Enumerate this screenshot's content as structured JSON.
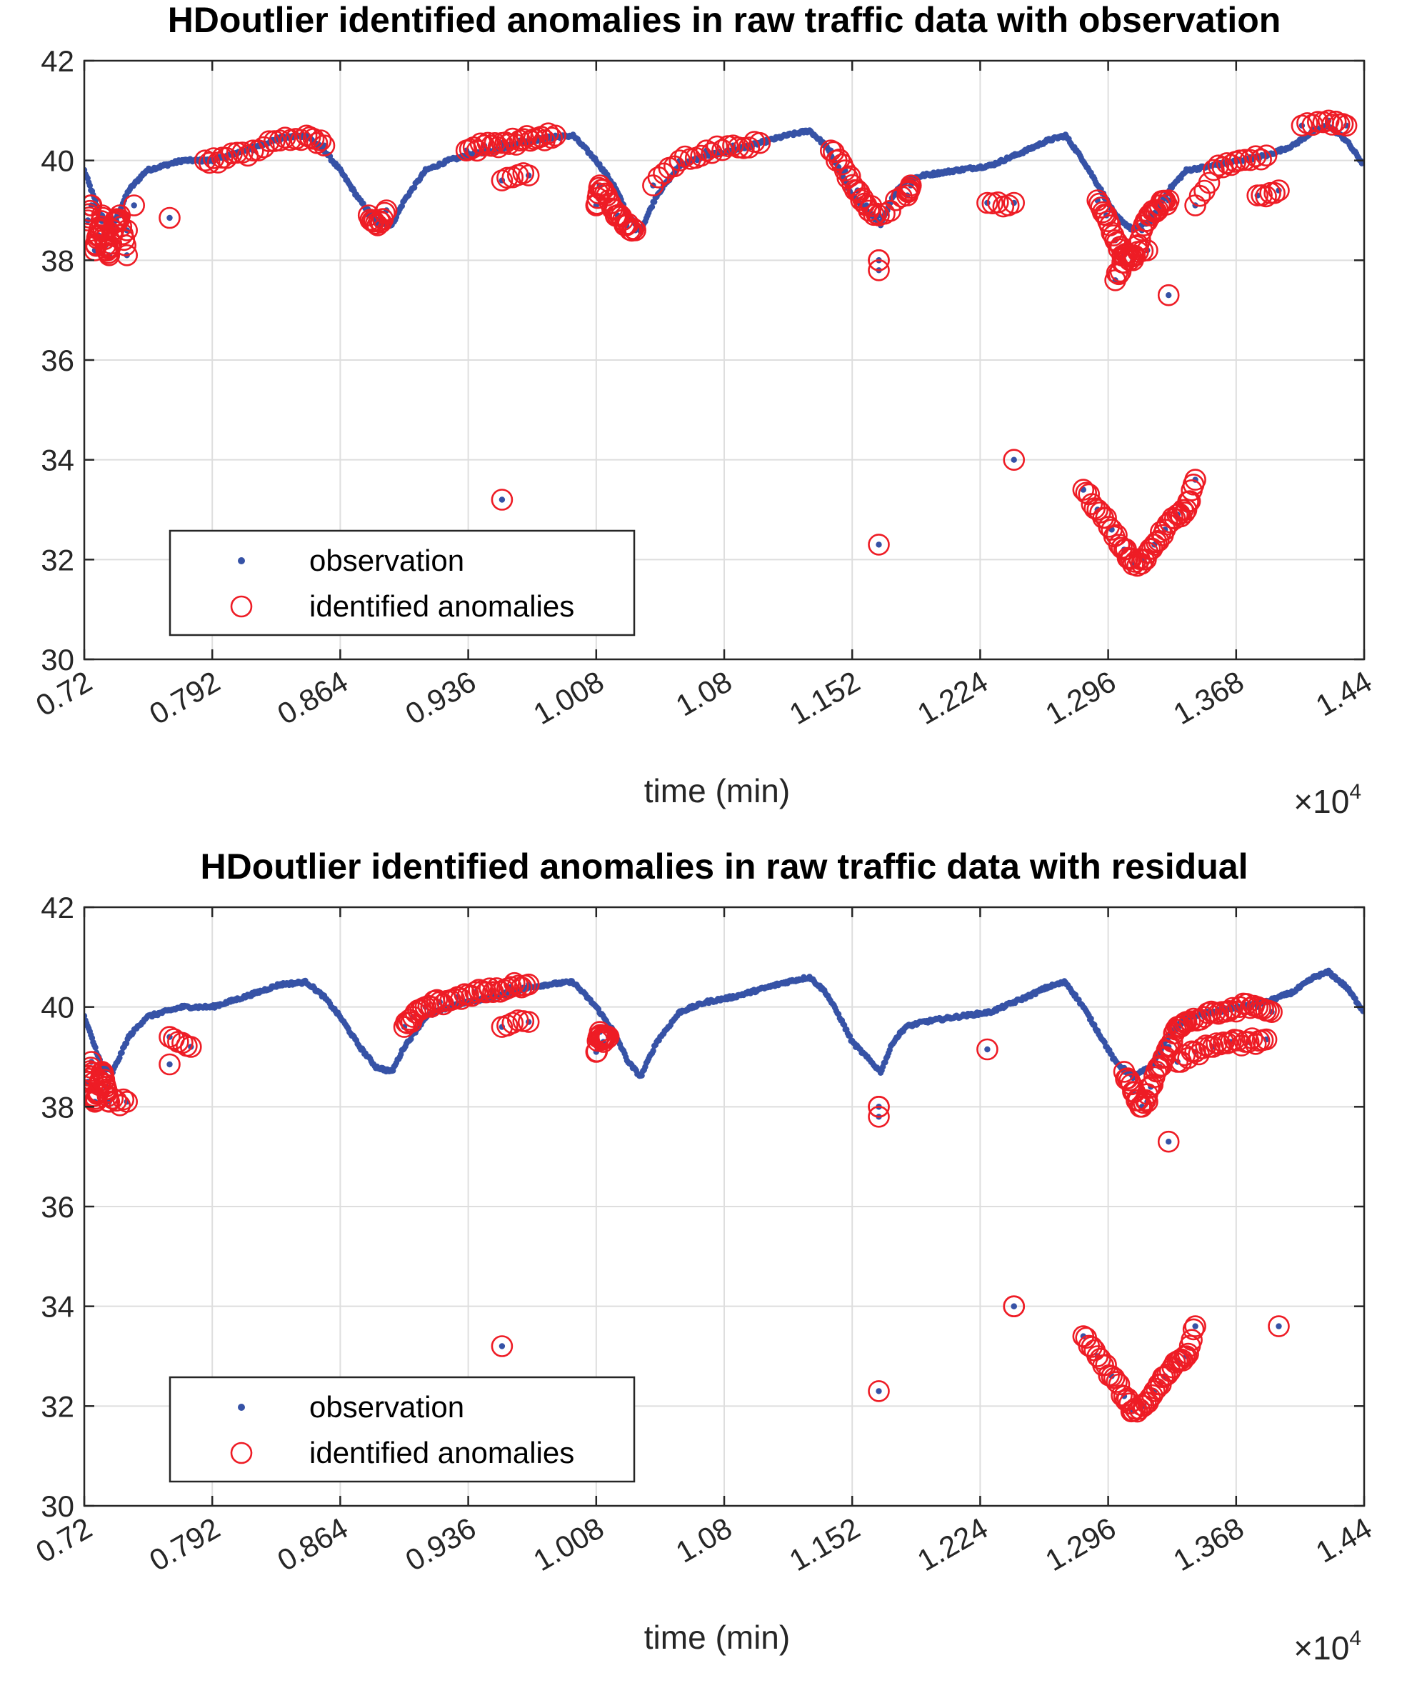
{
  "chart_data": [
    {
      "type": "scatter",
      "title": "HDoutlier identified anomalies in raw traffic data with observation",
      "xlabel": "time (min)",
      "ylabel": "",
      "x_exponent_label": "×10",
      "x_exponent_power": "4",
      "xlim": [
        0.72,
        1.44
      ],
      "ylim": [
        30,
        42
      ],
      "xticks": [
        0.72,
        0.792,
        0.864,
        0.936,
        1.008,
        1.08,
        1.152,
        1.224,
        1.296,
        1.368,
        1.44
      ],
      "xtick_labels": [
        "0.72",
        "0.792",
        "0.864",
        "0.936",
        "1.008",
        "1.08",
        "1.152",
        "1.224",
        "1.296",
        "1.368",
        "1.44"
      ],
      "yticks": [
        30,
        32,
        34,
        36,
        38,
        40,
        42
      ],
      "ytick_labels": [
        "30",
        "32",
        "34",
        "36",
        "38",
        "40",
        "42"
      ],
      "grid": true,
      "legend": {
        "position": "bottom-left",
        "entries": [
          {
            "label": "observation",
            "marker": "dot",
            "color": "#3652a6"
          },
          {
            "label": "identified anomalies",
            "marker": "circle",
            "color": "#ee1c25"
          }
        ]
      },
      "series": [
        {
          "name": "observation",
          "color": "#3652a6",
          "x": [
            0.72,
            0.725,
            0.73,
            0.736,
            0.745,
            0.755,
            0.765,
            0.775,
            0.792,
            0.81,
            0.83,
            0.845,
            0.855,
            0.864,
            0.875,
            0.884,
            0.893,
            0.9,
            0.912,
            0.925,
            0.936,
            0.95,
            0.965,
            0.98,
            0.995,
            1.008,
            1.018,
            1.026,
            1.033,
            1.042,
            1.055,
            1.07,
            1.085,
            1.1,
            1.115,
            1.128,
            1.137,
            1.145,
            1.152,
            1.16,
            1.168,
            1.175,
            1.182,
            1.192,
            1.21,
            1.23,
            1.25,
            1.262,
            1.272,
            1.282,
            1.292,
            1.3,
            1.31,
            1.32,
            1.33,
            1.34,
            1.355,
            1.37,
            1.385,
            1.4,
            1.412,
            1.42,
            1.43,
            1.44
          ],
          "y": [
            39.8,
            39.3,
            38.8,
            38.7,
            39.4,
            39.8,
            39.9,
            40.0,
            40.0,
            40.2,
            40.45,
            40.5,
            40.2,
            39.8,
            39.2,
            38.8,
            38.7,
            39.2,
            39.8,
            40.0,
            40.1,
            40.2,
            40.35,
            40.45,
            40.5,
            40.0,
            39.5,
            38.9,
            38.6,
            39.3,
            39.9,
            40.1,
            40.2,
            40.35,
            40.5,
            40.6,
            40.3,
            39.8,
            39.3,
            39.0,
            38.7,
            39.3,
            39.6,
            39.7,
            39.8,
            39.9,
            40.2,
            40.4,
            40.5,
            40.0,
            39.4,
            38.9,
            38.6,
            38.8,
            39.4,
            39.8,
            39.9,
            40.0,
            40.1,
            40.3,
            40.6,
            40.7,
            40.4,
            39.9
          ]
        },
        {
          "name": "identified anomalies",
          "color": "#ee1c25",
          "x": [
            0.722,
            0.724,
            0.726,
            0.728,
            0.73,
            0.732,
            0.734,
            0.736,
            0.738,
            0.74,
            0.744,
            0.748,
            0.744,
            0.768,
            0.788,
            0.8,
            0.815,
            0.83,
            0.845,
            0.855,
            0.88,
            0.885,
            0.89,
            0.935,
            0.945,
            0.955,
            0.965,
            0.975,
            0.985,
            0.955,
            0.97,
            1.008,
            1.01,
            1.015,
            1.02,
            1.025,
            1.03,
            1.04,
            1.055,
            1.07,
            1.085,
            1.1,
            1.14,
            1.148,
            1.155,
            1.16,
            1.167,
            1.183,
            1.185,
            1.167,
            1.167,
            1.167,
            1.228,
            1.243,
            1.29,
            1.295,
            1.3,
            1.305,
            1.31,
            1.315,
            1.32,
            1.325,
            1.33,
            1.3,
            1.305,
            1.318,
            1.33,
            1.345,
            1.358,
            1.37,
            1.385,
            1.405,
            1.42,
            1.43,
            1.38,
            1.392,
            0.955,
            1.167,
            1.243,
            1.282,
            1.29,
            1.298,
            1.305,
            1.31,
            1.316,
            1.322,
            1.328,
            1.335,
            1.34,
            1.345
          ],
          "y": [
            38.8,
            39.1,
            38.2,
            38.5,
            38.9,
            38.3,
            38.1,
            38.6,
            38.8,
            38.9,
            38.1,
            39.1,
            38.6,
            38.85,
            40.0,
            40.05,
            40.2,
            40.4,
            40.5,
            40.3,
            38.9,
            38.7,
            39.0,
            40.2,
            40.3,
            40.35,
            40.4,
            40.45,
            40.5,
            39.6,
            39.7,
            39.1,
            39.5,
            39.2,
            38.9,
            38.7,
            38.6,
            39.5,
            40.0,
            40.2,
            40.3,
            40.35,
            40.2,
            39.8,
            39.4,
            39.1,
            38.9,
            39.3,
            39.5,
            38.0,
            37.8,
            38.0,
            39.15,
            39.15,
            39.2,
            38.9,
            38.4,
            38.1,
            38.0,
            38.6,
            38.9,
            39.1,
            39.2,
            37.6,
            37.95,
            38.2,
            37.3,
            39.1,
            39.9,
            40.0,
            40.1,
            40.7,
            40.8,
            40.7,
            39.3,
            39.4,
            33.2,
            32.3,
            34.0,
            33.4,
            33.0,
            32.6,
            32.2,
            31.9,
            32.0,
            32.3,
            32.6,
            32.9,
            33.0,
            33.6
          ]
        }
      ]
    },
    {
      "type": "scatter",
      "title": "HDoutlier identified anomalies in raw traffic data with residual",
      "xlabel": "time (min)",
      "ylabel": "",
      "x_exponent_label": "×10",
      "x_exponent_power": "4",
      "xlim": [
        0.72,
        1.44
      ],
      "ylim": [
        30,
        42
      ],
      "xticks": [
        0.72,
        0.792,
        0.864,
        0.936,
        1.008,
        1.08,
        1.152,
        1.224,
        1.296,
        1.368,
        1.44
      ],
      "xtick_labels": [
        "0.72",
        "0.792",
        "0.864",
        "0.936",
        "1.008",
        "1.08",
        "1.152",
        "1.224",
        "1.296",
        "1.368",
        "1.44"
      ],
      "yticks": [
        30,
        32,
        34,
        36,
        38,
        40,
        42
      ],
      "ytick_labels": [
        "30",
        "32",
        "34",
        "36",
        "38",
        "40",
        "42"
      ],
      "grid": true,
      "legend": {
        "position": "bottom-left",
        "entries": [
          {
            "label": "observation",
            "marker": "dot",
            "color": "#3652a6"
          },
          {
            "label": "identified anomalies",
            "marker": "circle",
            "color": "#ee1c25"
          }
        ]
      },
      "series": [
        {
          "name": "observation",
          "color": "#3652a6",
          "x": [
            0.72,
            0.725,
            0.73,
            0.736,
            0.745,
            0.755,
            0.765,
            0.775,
            0.792,
            0.81,
            0.83,
            0.845,
            0.855,
            0.864,
            0.875,
            0.884,
            0.893,
            0.9,
            0.912,
            0.925,
            0.936,
            0.95,
            0.965,
            0.98,
            0.995,
            1.008,
            1.018,
            1.026,
            1.033,
            1.042,
            1.055,
            1.07,
            1.085,
            1.1,
            1.115,
            1.128,
            1.137,
            1.145,
            1.152,
            1.16,
            1.168,
            1.175,
            1.182,
            1.192,
            1.21,
            1.23,
            1.25,
            1.262,
            1.272,
            1.282,
            1.292,
            1.3,
            1.31,
            1.32,
            1.33,
            1.34,
            1.355,
            1.37,
            1.385,
            1.4,
            1.412,
            1.42,
            1.43,
            1.44
          ],
          "y": [
            39.8,
            39.3,
            38.8,
            38.7,
            39.4,
            39.8,
            39.9,
            40.0,
            40.0,
            40.2,
            40.45,
            40.5,
            40.2,
            39.8,
            39.2,
            38.8,
            38.7,
            39.2,
            39.8,
            40.0,
            40.1,
            40.2,
            40.35,
            40.45,
            40.5,
            40.0,
            39.5,
            38.9,
            38.6,
            39.3,
            39.9,
            40.1,
            40.2,
            40.35,
            40.5,
            40.6,
            40.3,
            39.8,
            39.3,
            39.0,
            38.7,
            39.3,
            39.6,
            39.7,
            39.8,
            39.9,
            40.2,
            40.4,
            40.5,
            40.0,
            39.4,
            38.9,
            38.6,
            38.8,
            39.4,
            39.8,
            39.9,
            40.0,
            40.1,
            40.3,
            40.6,
            40.7,
            40.4,
            39.9
          ]
        },
        {
          "name": "identified anomalies",
          "color": "#ee1c25",
          "x": [
            0.722,
            0.724,
            0.726,
            0.728,
            0.73,
            0.732,
            0.734,
            0.744,
            0.768,
            0.768,
            0.78,
            0.9,
            0.905,
            0.912,
            0.92,
            0.93,
            0.94,
            0.95,
            0.96,
            0.97,
            0.955,
            0.97,
            1.008,
            1.01,
            1.012,
            1.015,
            1.167,
            1.167,
            1.167,
            1.228,
            1.243,
            1.305,
            1.31,
            1.315,
            1.32,
            1.325,
            1.33,
            1.335,
            1.34,
            1.35,
            1.36,
            1.37,
            1.38,
            1.388,
            1.318,
            1.33,
            1.335,
            1.345,
            1.355,
            1.365,
            1.375,
            1.385,
            0.955,
            1.167,
            1.243,
            1.282,
            1.29,
            1.298,
            1.305,
            1.31,
            1.316,
            1.322,
            1.328,
            1.335,
            1.34,
            1.345,
            1.392
          ],
          "y": [
            38.5,
            38.9,
            38.1,
            38.3,
            38.7,
            38.4,
            38.1,
            38.1,
            38.85,
            39.4,
            39.2,
            39.6,
            39.8,
            40.0,
            40.1,
            40.2,
            40.3,
            40.3,
            40.4,
            40.45,
            39.6,
            39.7,
            39.1,
            39.5,
            39.3,
            39.4,
            38.0,
            37.8,
            32.3,
            39.15,
            34.0,
            38.7,
            38.3,
            38.0,
            38.4,
            38.8,
            39.2,
            39.6,
            39.7,
            39.8,
            39.9,
            40.0,
            40.0,
            39.9,
            38.1,
            37.3,
            38.9,
            39.1,
            39.2,
            39.3,
            39.3,
            39.35,
            33.2,
            38.0,
            34.0,
            33.4,
            33.0,
            32.6,
            32.2,
            31.9,
            32.0,
            32.3,
            32.6,
            32.9,
            33.0,
            33.6,
            33.6
          ]
        }
      ]
    }
  ]
}
